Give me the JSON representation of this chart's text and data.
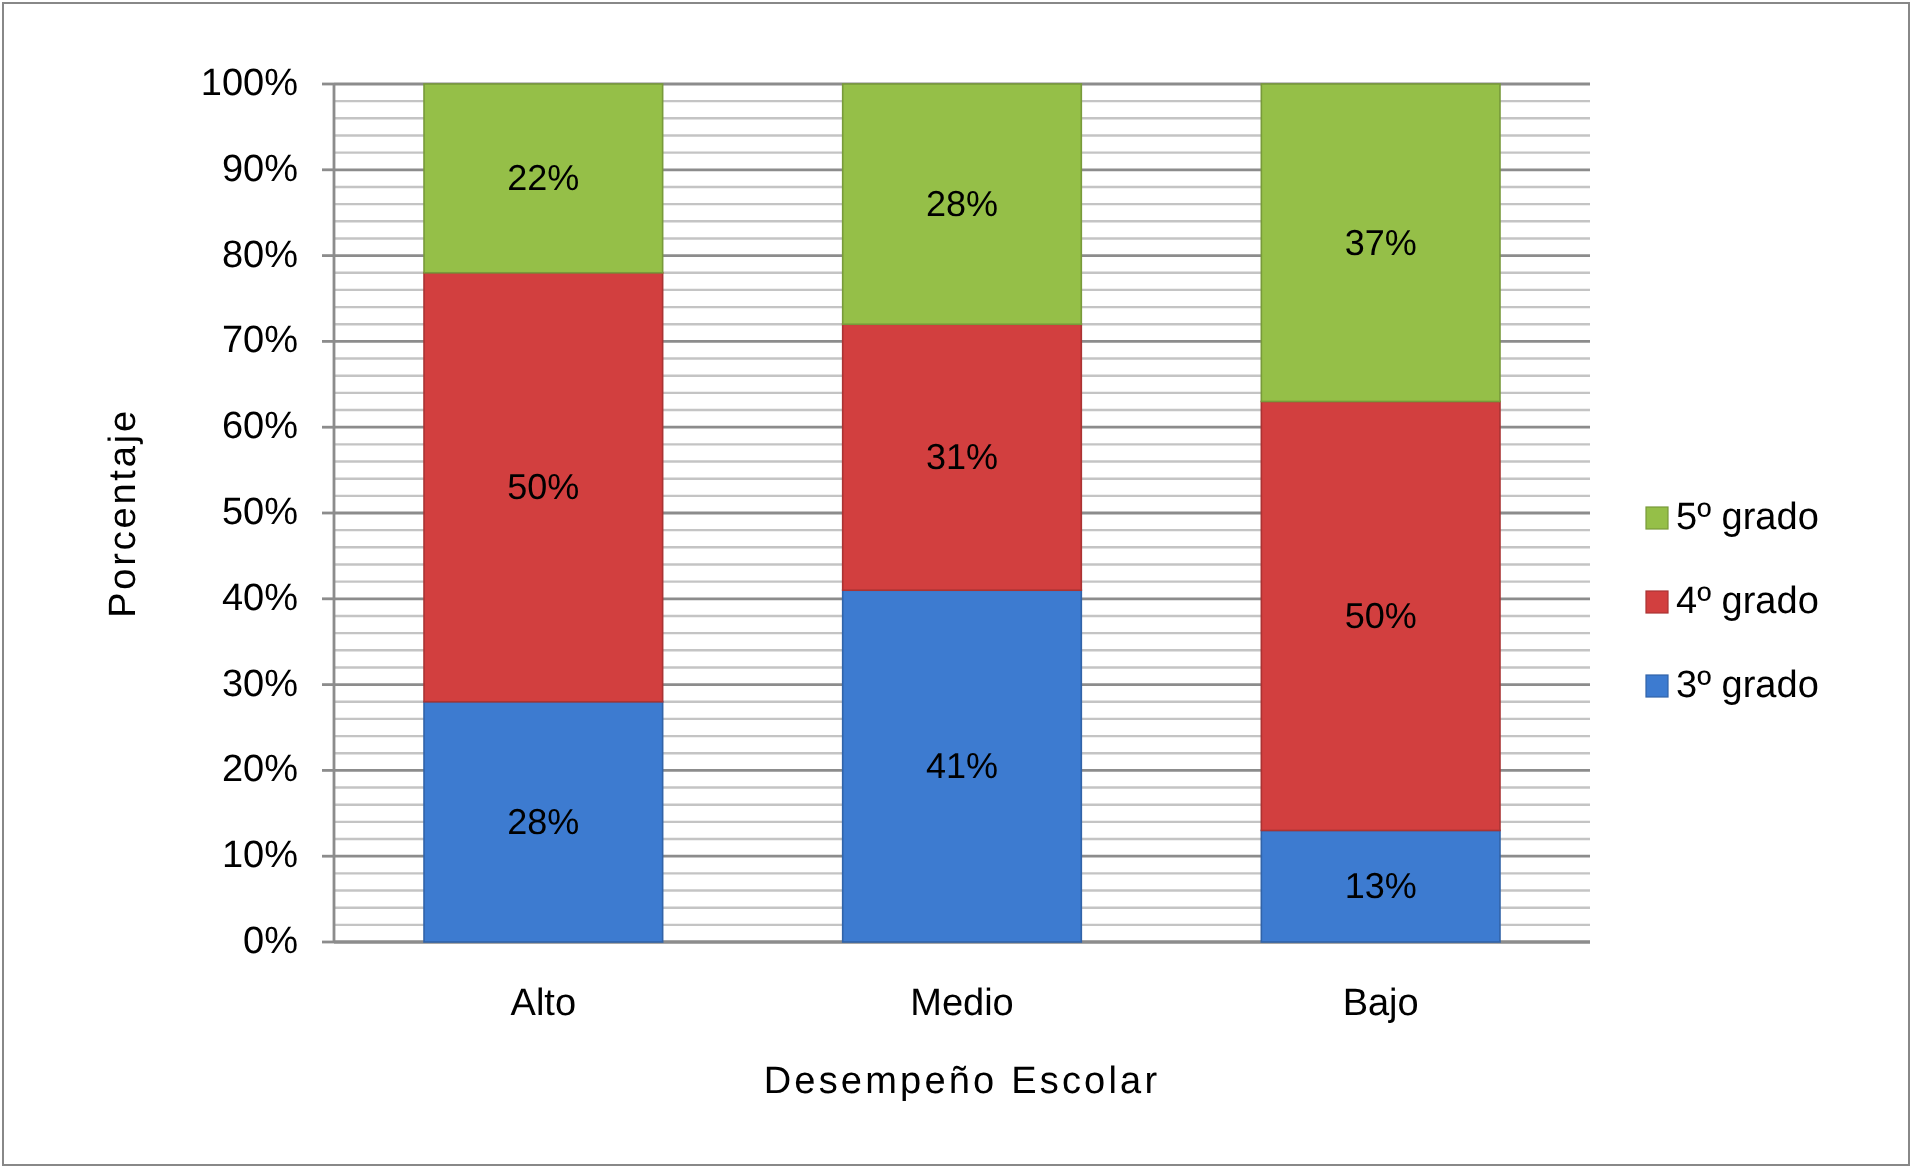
{
  "chart_data": {
    "type": "bar",
    "stacked": true,
    "xlabel": "Desempeño Escolar",
    "ylabel": "Porcentaje",
    "categories": [
      "Alto",
      "Medio",
      "Bajo"
    ],
    "series": [
      {
        "name": "3º grado",
        "color": "#3d7bd0",
        "values": [
          28,
          41,
          13
        ],
        "value_labels": [
          "28%",
          "41%",
          "13%"
        ]
      },
      {
        "name": "4º grado",
        "color": "#d23f3f",
        "values": [
          50,
          31,
          50
        ],
        "value_labels": [
          "50%",
          "31%",
          "50%"
        ]
      },
      {
        "name": "5º grado",
        "color": "#95bf48",
        "values": [
          22,
          28,
          37
        ],
        "value_labels": [
          "22%",
          "28%",
          "37%"
        ]
      }
    ],
    "ylim": [
      0,
      100
    ],
    "yticks": [
      {
        "value": 0,
        "label": "0%"
      },
      {
        "value": 2,
        "label": null
      },
      {
        "value": 4,
        "label": null
      },
      {
        "value": 6,
        "label": null
      },
      {
        "value": 8,
        "label": null
      },
      {
        "value": 10,
        "label": "10%"
      },
      {
        "value": 12,
        "label": null
      },
      {
        "value": 14,
        "label": null
      },
      {
        "value": 16,
        "label": null
      },
      {
        "value": 18,
        "label": null
      },
      {
        "value": 20,
        "label": "20%"
      },
      {
        "value": 22,
        "label": null
      },
      {
        "value": 24,
        "label": null
      },
      {
        "value": 26,
        "label": null
      },
      {
        "value": 28,
        "label": null
      },
      {
        "value": 30,
        "label": "30%"
      },
      {
        "value": 32,
        "label": null
      },
      {
        "value": 34,
        "label": null
      },
      {
        "value": 36,
        "label": null
      },
      {
        "value": 38,
        "label": null
      },
      {
        "value": 40,
        "label": "40%"
      },
      {
        "value": 42,
        "label": null
      },
      {
        "value": 44,
        "label": null
      },
      {
        "value": 46,
        "label": null
      },
      {
        "value": 48,
        "label": null
      },
      {
        "value": 50,
        "label": "50%"
      },
      {
        "value": 52,
        "label": null
      },
      {
        "value": 54,
        "label": null
      },
      {
        "value": 56,
        "label": null
      },
      {
        "value": 58,
        "label": null
      },
      {
        "value": 60,
        "label": "60%"
      },
      {
        "value": 62,
        "label": null
      },
      {
        "value": 64,
        "label": null
      },
      {
        "value": 66,
        "label": null
      },
      {
        "value": 68,
        "label": null
      },
      {
        "value": 70,
        "label": "70%"
      },
      {
        "value": 72,
        "label": null
      },
      {
        "value": 74,
        "label": null
      },
      {
        "value": 76,
        "label": null
      },
      {
        "value": 78,
        "label": null
      },
      {
        "value": 80,
        "label": "80%"
      },
      {
        "value": 82,
        "label": null
      },
      {
        "value": 84,
        "label": null
      },
      {
        "value": 86,
        "label": null
      },
      {
        "value": 88,
        "label": null
      },
      {
        "value": 90,
        "label": "90%"
      },
      {
        "value": 92,
        "label": null
      },
      {
        "value": 94,
        "label": null
      },
      {
        "value": 96,
        "label": null
      },
      {
        "value": 98,
        "label": null
      },
      {
        "value": 100,
        "label": "100%"
      }
    ],
    "grid": "y",
    "legend": "right"
  }
}
